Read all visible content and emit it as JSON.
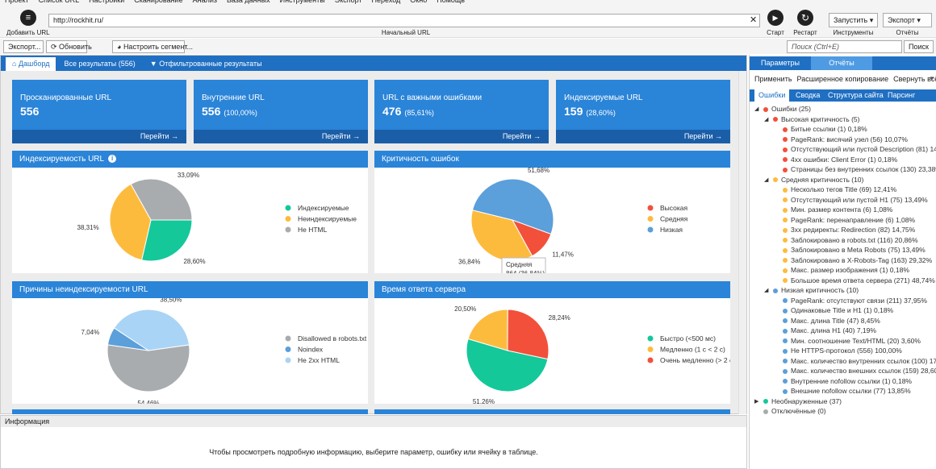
{
  "menu": [
    "Проект",
    "Список URL",
    "Настройки",
    "Сканирование",
    "Анализ",
    "База данных",
    "Инструменты",
    "Экспорт",
    "Переход",
    "Окно",
    "Помощь"
  ],
  "toolbar": {
    "add_url": "Добавить URL",
    "url": "http://rockhit.ru/",
    "url_caption": "Начальный URL",
    "start": "Старт",
    "restart": "Рестарт",
    "run": "Запустить",
    "tools": "Инструменты",
    "export": "Экспорт",
    "reports": "Отчёты"
  },
  "toolbar2": {
    "export": "Экспорт...",
    "refresh": "Обновить",
    "segment": "Настроить сегмент...",
    "search": "Поиск (Ctrl+E)",
    "search_button": "Поиск"
  },
  "tabs": [
    "Дашборд",
    "Все результаты (556)",
    "Отфильтрованные результаты"
  ],
  "cards": [
    {
      "title": "Просканированные URL",
      "value": 556,
      "link": "Перейти →"
    },
    {
      "title": "Внутренние URL",
      "value": 556,
      "extra": "(100,00%)",
      "link": "Перейти →"
    },
    {
      "title": "URL с важными ошибками",
      "value": 476,
      "extra": "(85,61%)",
      "link": "Перейти →"
    },
    {
      "title": "Индексируемые URL",
      "value": 159,
      "extra": "(28,60%)",
      "link": "Перейти →"
    }
  ],
  "chart_data": [
    {
      "type": "pie",
      "title": "Индексируемость URL",
      "categories": [
        "Индексируемые",
        "Неиндексируемые",
        "Не HTML"
      ],
      "values": [
        28.6,
        38.31,
        33.09
      ],
      "value_labels": [
        "28,60%",
        "38,31%",
        "33,09%"
      ],
      "colors": [
        "#14c89a",
        "#fdbb3e",
        "#a9acae"
      ]
    },
    {
      "type": "pie",
      "title": "Критичность ошибок",
      "categories": [
        "Высокая",
        "Средняя",
        "Низкая"
      ],
      "values": [
        11.47,
        36.84,
        51.68
      ],
      "value_labels": [
        "11,47%",
        "36,84%",
        "51,68%"
      ],
      "colors": [
        "#f2503a",
        "#fdbb3e",
        "#5b9fdb"
      ],
      "tooltip": {
        "title": "Средняя",
        "text": "864 (36,84%)"
      }
    },
    {
      "type": "pie",
      "title": "Причины неиндексируемости URL",
      "categories": [
        "Disallowed в robots.txt",
        "Noindex",
        "Не 2xx HTML"
      ],
      "values": [
        54.46,
        7.04,
        38.5
      ],
      "value_labels": [
        "54,46%",
        "7,04%",
        "38,50%"
      ],
      "colors": [
        "#a9acae",
        "#5b9fdb",
        "#a9d4f5"
      ]
    },
    {
      "type": "pie",
      "title": "Время ответа сервера",
      "categories": [
        "Быстро (<500 мс)",
        "Медленно (1 с < 2 с)",
        "Очень медленно (> 2 с)"
      ],
      "values": [
        51.26,
        20.5,
        28.24
      ],
      "value_labels": [
        "51,26%",
        "20,50%",
        "28,24%"
      ],
      "colors": [
        "#14c89a",
        "#fdbb3e",
        "#f2503a"
      ]
    }
  ],
  "right_panel": {
    "tabs": [
      "Параметры",
      "Отчёты"
    ],
    "actions": [
      "Применить",
      "Расширенное копирование",
      "Свернуть всё"
    ],
    "subtabs": [
      "Ошибки",
      "Сводка",
      "Структура сайта",
      "Парсинг"
    ],
    "tree": [
      {
        "level": 0,
        "color": "#f2503a",
        "label": "Ошибки (25)"
      },
      {
        "level": 1,
        "color": "#f2503a",
        "label": "Высокая критичность (5)"
      },
      {
        "level": 2,
        "color": "#f2503a",
        "label": "Битые ссылки (1) 0,18%"
      },
      {
        "level": 2,
        "color": "#f2503a",
        "label": "PageRank: висячий узел (56) 10,07%"
      },
      {
        "level": 2,
        "color": "#f2503a",
        "label": "Отсутствующий или пустой Description (81) 14,57%"
      },
      {
        "level": 2,
        "color": "#f2503a",
        "label": "4xx ошибки: Client Error (1) 0,18%"
      },
      {
        "level": 2,
        "color": "#f2503a",
        "label": "Страницы без внутренних ссылок (130) 23,38%"
      },
      {
        "level": 1,
        "color": "#fdbb3e",
        "label": "Средняя критичность (10)"
      },
      {
        "level": 2,
        "color": "#fdbb3e",
        "label": "Несколько тегов Title (69) 12,41%"
      },
      {
        "level": 2,
        "color": "#fdbb3e",
        "label": "Отсутствующий или пустой H1 (75) 13,49%"
      },
      {
        "level": 2,
        "color": "#fdbb3e",
        "label": "Мин. размер контента (6) 1,08%"
      },
      {
        "level": 2,
        "color": "#fdbb3e",
        "label": "PageRank: перенаправление (6) 1,08%"
      },
      {
        "level": 2,
        "color": "#fdbb3e",
        "label": "3xx редиректы: Redirection (82) 14,75%"
      },
      {
        "level": 2,
        "color": "#fdbb3e",
        "label": "Заблокировано в robots.txt (116) 20,86%"
      },
      {
        "level": 2,
        "color": "#fdbb3e",
        "label": "Заблокировано в Meta Robots (75) 13,49%"
      },
      {
        "level": 2,
        "color": "#fdbb3e",
        "label": "Заблокировано в X-Robots-Tag (163) 29,32%"
      },
      {
        "level": 2,
        "color": "#fdbb3e",
        "label": "Макс. размер изображения (1) 0,18%"
      },
      {
        "level": 2,
        "color": "#fdbb3e",
        "label": "Большое время ответа сервера (271) 48,74%"
      },
      {
        "level": 1,
        "color": "#5b9fdb",
        "label": "Низкая критичность (10)"
      },
      {
        "level": 2,
        "color": "#5b9fdb",
        "label": "PageRank: отсутствуют связи (211) 37,95%"
      },
      {
        "level": 2,
        "color": "#5b9fdb",
        "label": "Одинаковые Title и H1 (1) 0,18%"
      },
      {
        "level": 2,
        "color": "#5b9fdb",
        "label": "Макс. длина Title (47) 8,45%"
      },
      {
        "level": 2,
        "color": "#5b9fdb",
        "label": "Макс. длина H1 (40) 7,19%"
      },
      {
        "level": 2,
        "color": "#5b9fdb",
        "label": "Мин. соотношение Text/HTML (20) 3,60%"
      },
      {
        "level": 2,
        "color": "#5b9fdb",
        "label": "Не HTTPS-протокол (556) 100,00%"
      },
      {
        "level": 2,
        "color": "#5b9fdb",
        "label": "Макс. количество внутренних ссылок (100) 17,99%"
      },
      {
        "level": 2,
        "color": "#5b9fdb",
        "label": "Макс. количество внешних ссылок (159) 28,60%"
      },
      {
        "level": 2,
        "color": "#5b9fdb",
        "label": "Внутренние nofollow ссылки (1) 0,18%"
      },
      {
        "level": 2,
        "color": "#5b9fdb",
        "label": "Внешние nofollow ссылки (77) 13,85%"
      },
      {
        "level": 0,
        "color": "#14c89a",
        "label": "Необнаруженные (37)",
        "collapsed": true
      },
      {
        "level": 0,
        "color": "#a9acae",
        "label": "Отключённые (0)"
      }
    ]
  },
  "info": {
    "title": "Информация",
    "message": "Чтобы просмотреть подробную информацию, выберите параметр, ошибку или ячейку в таблице."
  }
}
